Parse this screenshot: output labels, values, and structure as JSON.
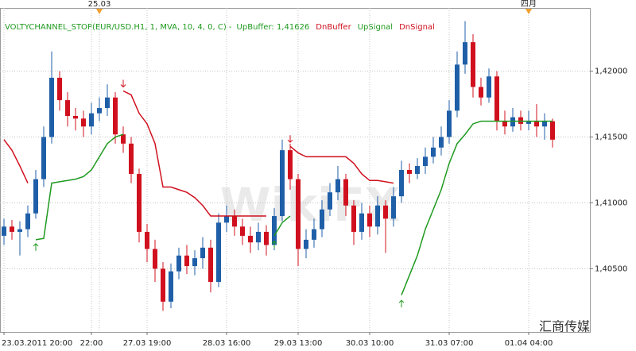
{
  "chart_data": {
    "type": "candlestick",
    "title": "VOLTYCHANNEL_STOP(EUR/USD.H1, 1, MVA, 10, 4, 0, C) -",
    "status": "UpBuffer: 1,41626",
    "watermark": "WikiFX",
    "credit": "汇商传媒",
    "up_color": "#1f5fa8",
    "down_color": "#d0101e",
    "grid": true,
    "categories": [
      "23.03.2011 20:00",
      null,
      null,
      null,
      null,
      null,
      null,
      null,
      null,
      null,
      null,
      "22:00",
      null,
      null,
      null,
      null,
      null,
      null,
      "27.03 19:00",
      null,
      null,
      null,
      null,
      null,
      null,
      null,
      null,
      null,
      "28.03 16:00",
      null,
      null,
      null,
      null,
      null,
      null,
      null,
      null,
      "29.03 13:00",
      null,
      null,
      null,
      null,
      null,
      null,
      null,
      null,
      "30.03 10:00",
      null,
      null,
      null,
      null,
      null,
      null,
      null,
      null,
      null,
      "31.03 07:00",
      null,
      null,
      null,
      null,
      null,
      null,
      null,
      null,
      null,
      "01.04 04:00",
      null,
      null,
      null
    ],
    "top_labels": [
      {
        "index": 12,
        "label": "25.03"
      },
      {
        "index": 66,
        "label": "四月"
      }
    ],
    "open": [
      1.4075,
      1.4082,
      1.4078,
      1.408,
      1.4092,
      1.4118,
      1.415,
      1.4195,
      1.4178,
      1.4166,
      1.4164,
      1.4158,
      1.4168,
      1.4172,
      1.418,
      1.4152,
      1.4145,
      1.4122,
      1.4078,
      1.4065,
      1.405,
      1.4025,
      1.4048,
      1.406,
      1.4052,
      1.4058,
      1.4066,
      1.404,
      1.4085,
      1.409,
      1.4082,
      1.4075,
      1.407,
      1.4078,
      1.4068,
      1.409,
      1.414,
      1.4118,
      1.4065,
      1.4072,
      1.408,
      1.4095,
      1.4108,
      1.4118,
      1.4098,
      1.4078,
      1.4092,
      1.4082,
      1.4098,
      1.4088,
      1.4105,
      1.4125,
      1.4122,
      1.4128,
      1.4135,
      1.4142,
      1.415,
      1.417,
      1.4205,
      1.4222,
      1.4188,
      1.418,
      1.4196,
      1.4162,
      1.4158,
      1.4165,
      1.416,
      1.4162,
      1.4158,
      1.4162
    ],
    "high": [
      1.4088,
      1.4087,
      1.4086,
      1.4098,
      1.4125,
      1.4158,
      1.4215,
      1.42,
      1.4184,
      1.4172,
      1.417,
      1.4176,
      1.418,
      1.419,
      1.4184,
      1.4158,
      1.415,
      1.4126,
      1.4084,
      1.4072,
      1.4055,
      1.4054,
      1.4066,
      1.4068,
      1.4064,
      1.4074,
      1.4072,
      1.4092,
      1.4098,
      1.4095,
      1.4088,
      1.4082,
      1.4085,
      1.4083,
      1.4096,
      1.4148,
      1.4145,
      1.4122,
      1.408,
      1.4088,
      1.4102,
      1.4115,
      1.4128,
      1.4122,
      1.4102,
      1.41,
      1.4098,
      1.4105,
      1.4102,
      1.4112,
      1.4132,
      1.413,
      1.4134,
      1.4142,
      1.415,
      1.4158,
      1.4178,
      1.4215,
      1.4238,
      1.4228,
      1.4195,
      1.4202,
      1.42,
      1.417,
      1.4172,
      1.417,
      1.417,
      1.4175,
      1.4168,
      1.4164
    ],
    "low": [
      1.4068,
      1.4072,
      1.406,
      1.4074,
      1.4088,
      1.4112,
      1.4145,
      1.417,
      1.4158,
      1.4155,
      1.415,
      1.4152,
      1.4162,
      1.4166,
      1.4145,
      1.4138,
      1.4115,
      1.407,
      1.4055,
      1.404,
      1.4018,
      1.402,
      1.4042,
      1.4046,
      1.4045,
      1.405,
      1.4032,
      1.4036,
      1.4078,
      1.4075,
      1.4068,
      1.4062,
      1.4064,
      1.406,
      1.4064,
      1.4086,
      1.411,
      1.4052,
      1.4058,
      1.4066,
      1.4074,
      1.409,
      1.4102,
      1.409,
      1.4068,
      1.4072,
      1.4074,
      1.4076,
      1.4062,
      1.4082,
      1.41,
      1.4115,
      1.4118,
      1.4122,
      1.413,
      1.4136,
      1.4145,
      1.4165,
      1.4198,
      1.418,
      1.4174,
      1.4176,
      1.4155,
      1.4152,
      1.4154,
      1.4155,
      1.4155,
      1.415,
      1.4148,
      1.4142
    ],
    "close": [
      1.4082,
      1.4078,
      1.408,
      1.4092,
      1.4118,
      1.415,
      1.4195,
      1.4178,
      1.4166,
      1.4164,
      1.4158,
      1.4168,
      1.4172,
      1.418,
      1.4152,
      1.4145,
      1.4122,
      1.4078,
      1.4065,
      1.405,
      1.4025,
      1.4048,
      1.406,
      1.4052,
      1.4058,
      1.4066,
      1.404,
      1.4085,
      1.409,
      1.4082,
      1.4075,
      1.407,
      1.4078,
      1.4068,
      1.409,
      1.414,
      1.4118,
      1.4065,
      1.4072,
      1.408,
      1.4095,
      1.4108,
      1.4118,
      1.4098,
      1.4078,
      1.4092,
      1.4082,
      1.4098,
      1.4088,
      1.4105,
      1.4125,
      1.4122,
      1.4128,
      1.4135,
      1.4142,
      1.415,
      1.417,
      1.4205,
      1.4222,
      1.4188,
      1.418,
      1.4196,
      1.4162,
      1.4158,
      1.4165,
      1.416,
      1.4162,
      1.4158,
      1.4162,
      1.4148
    ],
    "series": [
      {
        "name": "UpBuffer",
        "color": "#1f9a1f",
        "values": [
          null,
          null,
          null,
          null,
          1.4072,
          1.4073,
          1.4115,
          1.4116,
          1.4117,
          1.4118,
          1.412,
          1.4125,
          1.4135,
          1.4145,
          1.415,
          1.4152,
          null,
          null,
          null,
          null,
          null,
          null,
          null,
          null,
          null,
          null,
          null,
          null,
          null,
          null,
          null,
          null,
          null,
          null,
          1.4075,
          1.4085,
          1.409,
          null,
          null,
          null,
          null,
          null,
          null,
          null,
          null,
          null,
          null,
          null,
          null,
          null,
          1.403,
          1.4045,
          1.406,
          1.408,
          1.4095,
          1.411,
          1.413,
          1.4145,
          1.4152,
          1.416,
          1.4162,
          1.4162,
          1.4162,
          1.4162,
          1.4162,
          1.4162,
          1.4162,
          1.4162,
          1.4162,
          1.4162
        ]
      },
      {
        "name": "DnBuffer",
        "color": "#d0101e",
        "values": [
          1.4148,
          1.414,
          1.4128,
          1.4115,
          null,
          null,
          null,
          null,
          null,
          null,
          null,
          null,
          null,
          null,
          null,
          1.4185,
          1.4182,
          1.4168,
          1.416,
          1.4145,
          1.4112,
          1.4112,
          1.411,
          1.4108,
          1.4104,
          1.4098,
          1.409,
          1.409,
          1.409,
          1.409,
          1.409,
          1.409,
          1.409,
          1.409,
          null,
          null,
          1.4143,
          1.4138,
          1.4135,
          1.4135,
          1.4135,
          1.4135,
          1.4135,
          1.4135,
          1.413,
          1.4122,
          1.4117,
          1.4117,
          1.4116,
          1.4115,
          null,
          null,
          null,
          null,
          null,
          null,
          null,
          null,
          null,
          null,
          null,
          null,
          null,
          null,
          null,
          null,
          null,
          null,
          null,
          null
        ]
      }
    ],
    "signals": [
      {
        "name": "UpSignal",
        "color": "#1f9a1f",
        "direction": "up",
        "x": [
          4,
          34,
          50
        ],
        "values": [
          1.4066,
          1.4068,
          1.4023
        ]
      },
      {
        "name": "DnSignal",
        "color": "#d0101e",
        "direction": "down",
        "x": [
          15,
          36
        ],
        "values": [
          1.4191,
          1.4149
        ]
      }
    ],
    "ylim": [
      1.4002,
      1.4248
    ],
    "yticks": [
      {
        "value": 1.405,
        "label": "1,40500"
      },
      {
        "value": 1.41,
        "label": "1,41000"
      },
      {
        "value": 1.415,
        "label": "1,41500"
      },
      {
        "value": 1.42,
        "label": "1,42000"
      }
    ]
  }
}
